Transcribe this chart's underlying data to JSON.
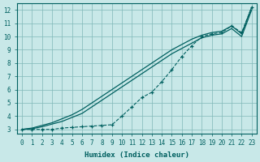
{
  "title": "",
  "xlabel": "Humidex (Indice chaleur)",
  "ylabel": "",
  "bg_color": "#c8e8e8",
  "grid_color": "#80b8b8",
  "line_color": "#006060",
  "xlim": [
    -0.5,
    23.5
  ],
  "ylim": [
    2.7,
    12.5
  ],
  "xticks": [
    0,
    1,
    2,
    3,
    4,
    5,
    6,
    7,
    8,
    9,
    10,
    11,
    12,
    13,
    14,
    15,
    16,
    17,
    18,
    19,
    20,
    21,
    22,
    23
  ],
  "yticks": [
    3,
    4,
    5,
    6,
    7,
    8,
    9,
    10,
    11,
    12
  ],
  "smooth1_x": [
    0,
    1,
    2,
    3,
    4,
    5,
    6,
    7,
    8,
    9,
    10,
    11,
    12,
    13,
    14,
    15,
    16,
    17,
    18,
    19,
    20,
    21,
    22,
    23
  ],
  "smooth1_y": [
    3.0,
    3.1,
    3.3,
    3.5,
    3.8,
    4.1,
    4.5,
    5.0,
    5.5,
    6.0,
    6.5,
    7.0,
    7.5,
    8.0,
    8.5,
    9.0,
    9.4,
    9.8,
    10.1,
    10.3,
    10.4,
    10.8,
    10.2,
    12.2
  ],
  "smooth2_x": [
    0,
    1,
    2,
    3,
    4,
    5,
    6,
    7,
    8,
    9,
    10,
    11,
    12,
    13,
    14,
    15,
    16,
    17,
    18,
    19,
    20,
    21,
    22,
    23
  ],
  "smooth2_y": [
    3.0,
    3.05,
    3.2,
    3.4,
    3.6,
    3.9,
    4.2,
    4.7,
    5.2,
    5.7,
    6.2,
    6.7,
    7.2,
    7.7,
    8.2,
    8.7,
    9.1,
    9.5,
    9.9,
    10.1,
    10.2,
    10.6,
    10.0,
    12.0
  ],
  "dotted_x": [
    0,
    1,
    2,
    3,
    4,
    5,
    6,
    7,
    8,
    9,
    10,
    11,
    12,
    13,
    14,
    15,
    16,
    17,
    18,
    19,
    20,
    21,
    22,
    23
  ],
  "dotted_y": [
    3.0,
    3.0,
    3.0,
    3.0,
    3.1,
    3.15,
    3.2,
    3.25,
    3.3,
    3.35,
    4.0,
    4.7,
    5.4,
    5.8,
    6.6,
    7.5,
    8.5,
    9.3,
    10.0,
    10.2,
    10.3,
    10.8,
    10.3,
    12.2
  ]
}
